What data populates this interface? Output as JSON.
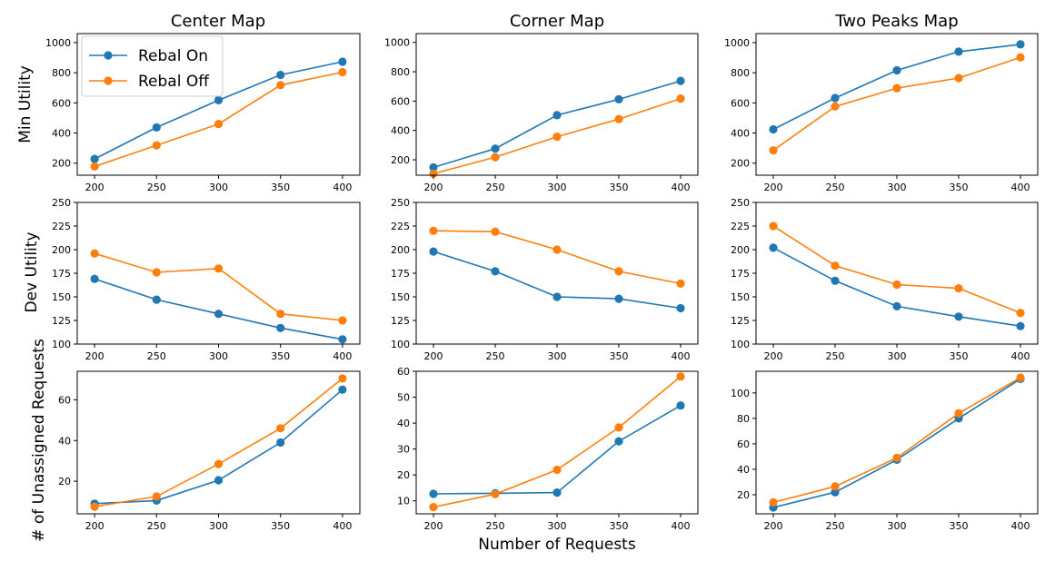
{
  "figure": {
    "xlabel": "Number of Requests",
    "series_names": [
      "Rebal On",
      "Rebal Off"
    ],
    "colors": {
      "Rebal On": "#1f77b4",
      "Rebal Off": "#ff7f0e"
    }
  },
  "chart_data": [
    {
      "type": "line",
      "title": "Center Map",
      "ylabel": "Min Utility",
      "xlabel": "",
      "x": [
        200,
        250,
        300,
        350,
        400
      ],
      "ylim": [
        120,
        1060
      ],
      "yticks": [
        200,
        400,
        600,
        800,
        1000
      ],
      "legend": {
        "placement": "top-left",
        "entries": [
          "Rebal On",
          "Rebal Off"
        ]
      },
      "series": [
        {
          "name": "Rebal On",
          "values": [
            228,
            437,
            618,
            786,
            873
          ]
        },
        {
          "name": "Rebal Off",
          "values": [
            178,
            318,
            460,
            718,
            804
          ]
        }
      ]
    },
    {
      "type": "line",
      "title": "Corner Map",
      "ylabel": "",
      "xlabel": "",
      "x": [
        200,
        250,
        300,
        350,
        400
      ],
      "ylim": [
        95,
        1060
      ],
      "yticks": [
        200,
        400,
        600,
        800,
        1000
      ],
      "series": [
        {
          "name": "Rebal On",
          "values": [
            148,
            276,
            504,
            612,
            738
          ]
        },
        {
          "name": "Rebal Off",
          "values": [
            105,
            218,
            357,
            477,
            617
          ]
        }
      ]
    },
    {
      "type": "line",
      "title": "Two Peaks Map",
      "ylabel": "",
      "xlabel": "",
      "x": [
        200,
        250,
        300,
        350,
        400
      ],
      "ylim": [
        120,
        1060
      ],
      "yticks": [
        200,
        400,
        600,
        800,
        1000
      ],
      "series": [
        {
          "name": "Rebal On",
          "values": [
            424,
            632,
            816,
            940,
            988
          ]
        },
        {
          "name": "Rebal Off",
          "values": [
            285,
            576,
            698,
            765,
            902
          ]
        }
      ]
    },
    {
      "type": "line",
      "title": "",
      "ylabel": "Dev Utility",
      "xlabel": "",
      "x": [
        200,
        250,
        300,
        350,
        400
      ],
      "ylim": [
        100,
        250
      ],
      "yticks": [
        100,
        125,
        150,
        175,
        200,
        225,
        250
      ],
      "series": [
        {
          "name": "Rebal On",
          "values": [
            169,
            147,
            132,
            117,
            105
          ]
        },
        {
          "name": "Rebal Off",
          "values": [
            196,
            176,
            180,
            132,
            125
          ]
        }
      ]
    },
    {
      "type": "line",
      "title": "",
      "ylabel": "",
      "xlabel": "",
      "x": [
        200,
        250,
        300,
        350,
        400
      ],
      "ylim": [
        100,
        250
      ],
      "yticks": [
        100,
        125,
        150,
        175,
        200,
        225,
        250
      ],
      "series": [
        {
          "name": "Rebal On",
          "values": [
            198,
            177,
            150,
            148,
            138
          ]
        },
        {
          "name": "Rebal Off",
          "values": [
            220,
            219,
            200,
            177,
            164
          ]
        }
      ]
    },
    {
      "type": "line",
      "title": "",
      "ylabel": "",
      "xlabel": "",
      "x": [
        200,
        250,
        300,
        350,
        400
      ],
      "ylim": [
        100,
        250
      ],
      "yticks": [
        100,
        125,
        150,
        175,
        200,
        225,
        250
      ],
      "series": [
        {
          "name": "Rebal On",
          "values": [
            202,
            167,
            140,
            129,
            119
          ]
        },
        {
          "name": "Rebal Off",
          "values": [
            225,
            183,
            163,
            159,
            133
          ]
        }
      ]
    },
    {
      "type": "line",
      "title": "",
      "ylabel": "# of Unassigned Requests",
      "xlabel": "",
      "x": [
        200,
        250,
        300,
        350,
        400
      ],
      "ylim": [
        4,
        74
      ],
      "yticks": [
        20,
        40,
        60
      ],
      "series": [
        {
          "name": "Rebal On",
          "values": [
            9,
            10.5,
            20.5,
            39,
            65
          ]
        },
        {
          "name": "Rebal Off",
          "values": [
            7.5,
            12.5,
            28.5,
            46,
            70.5
          ]
        }
      ]
    },
    {
      "type": "line",
      "title": "",
      "ylabel": "",
      "xlabel": "Number of Requests",
      "x": [
        200,
        250,
        300,
        350,
        400
      ],
      "ylim": [
        5,
        60
      ],
      "yticks": [
        10,
        20,
        30,
        40,
        50,
        60
      ],
      "series": [
        {
          "name": "Rebal On",
          "values": [
            12.7,
            12.9,
            13.2,
            33,
            46.8
          ]
        },
        {
          "name": "Rebal Off",
          "values": [
            7.6,
            12.6,
            22,
            38.3,
            58
          ]
        }
      ]
    },
    {
      "type": "line",
      "title": "",
      "ylabel": "",
      "xlabel": "",
      "x": [
        200,
        250,
        300,
        350,
        400
      ],
      "ylim": [
        5,
        117
      ],
      "yticks": [
        20,
        40,
        60,
        80,
        100
      ],
      "series": [
        {
          "name": "Rebal On",
          "values": [
            10,
            22,
            47.5,
            80,
            111
          ]
        },
        {
          "name": "Rebal Off",
          "values": [
            14,
            26.5,
            49,
            84,
            112
          ]
        }
      ]
    }
  ]
}
